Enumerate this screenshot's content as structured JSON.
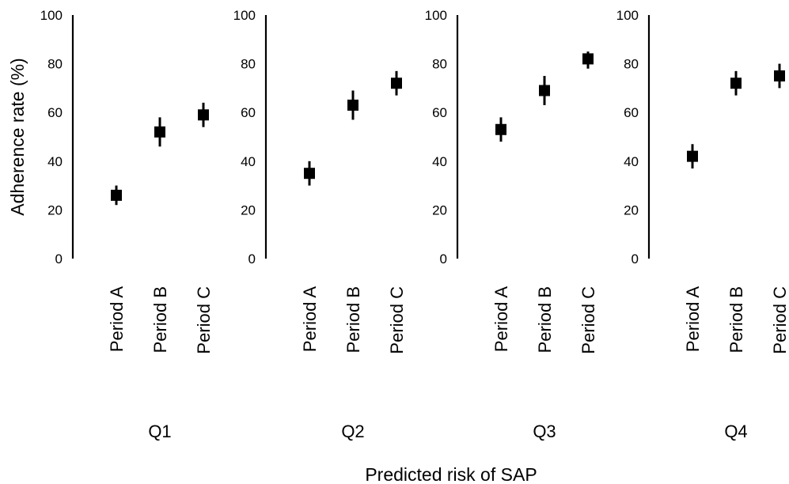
{
  "chart_data": {
    "type": "scatter",
    "ylabel": "Adherence rate (%)",
    "xlabel": "Predicted risk of SAP",
    "ylim": [
      0,
      100
    ],
    "yticks": [
      0,
      20,
      40,
      60,
      80,
      100
    ],
    "categories": [
      "Period A",
      "Period B",
      "Period C"
    ],
    "grid": false,
    "marker": "square",
    "marker_color": "#000000",
    "panels": [
      {
        "group": "Q1",
        "points": [
          {
            "category": "Period A",
            "value": 26,
            "lower": 22,
            "upper": 30
          },
          {
            "category": "Period B",
            "value": 52,
            "lower": 46,
            "upper": 58
          },
          {
            "category": "Period C",
            "value": 59,
            "lower": 54,
            "upper": 64
          }
        ]
      },
      {
        "group": "Q2",
        "points": [
          {
            "category": "Period A",
            "value": 35,
            "lower": 30,
            "upper": 40
          },
          {
            "category": "Period B",
            "value": 63,
            "lower": 57,
            "upper": 69
          },
          {
            "category": "Period C",
            "value": 72,
            "lower": 67,
            "upper": 77
          }
        ]
      },
      {
        "group": "Q3",
        "points": [
          {
            "category": "Period A",
            "value": 53,
            "lower": 48,
            "upper": 58
          },
          {
            "category": "Period B",
            "value": 69,
            "lower": 63,
            "upper": 75
          },
          {
            "category": "Period C",
            "value": 82,
            "lower": 78,
            "upper": 85
          }
        ]
      },
      {
        "group": "Q4",
        "points": [
          {
            "category": "Period A",
            "value": 42,
            "lower": 37,
            "upper": 47
          },
          {
            "category": "Period B",
            "value": 72,
            "lower": 67,
            "upper": 77
          },
          {
            "category": "Period C",
            "value": 75,
            "lower": 70,
            "upper": 80
          }
        ]
      }
    ]
  }
}
